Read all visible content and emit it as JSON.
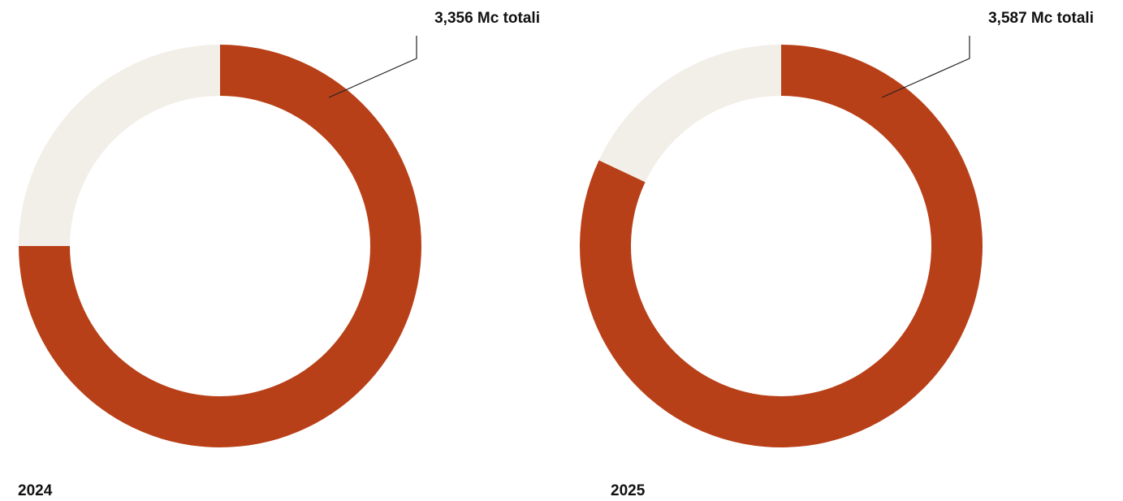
{
  "chart_data": [
    {
      "type": "donut",
      "title": "2024",
      "annotation": "3,356 Mc totali",
      "values": [
        75,
        25
      ],
      "colors": [
        "#b84018",
        "#f2eee8"
      ]
    },
    {
      "type": "donut",
      "title": "2025",
      "annotation": "3,587 Mc totali",
      "values": [
        82,
        18
      ],
      "colors": [
        "#b84018",
        "#f2eee8"
      ]
    }
  ]
}
